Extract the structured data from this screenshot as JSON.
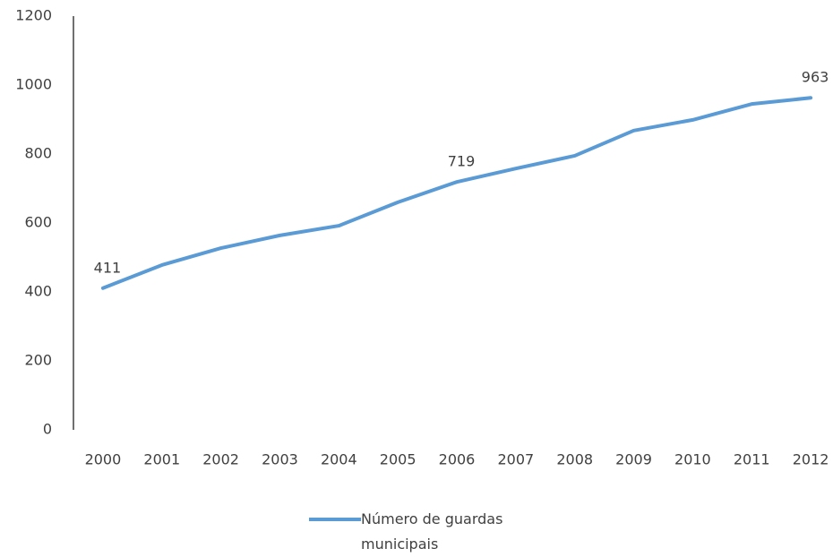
{
  "chart_data": {
    "type": "line",
    "categories": [
      "2000",
      "2001",
      "2002",
      "2003",
      "2004",
      "2005",
      "2006",
      "2007",
      "2008",
      "2009",
      "2010",
      "2011",
      "2012"
    ],
    "series": [
      {
        "name": "Número de guardas municipais",
        "color": "#5b9bd5",
        "values": [
          411,
          478,
          527,
          564,
          592,
          660,
          719,
          758,
          795,
          868,
          899,
          945,
          963
        ]
      }
    ],
    "show_value_labels_at": [
      0,
      6,
      12
    ],
    "ylim": [
      0,
      1200
    ],
    "yticks": [
      0,
      200,
      400,
      600,
      800,
      1000,
      1200
    ],
    "grid": false,
    "legend": "bottom"
  }
}
